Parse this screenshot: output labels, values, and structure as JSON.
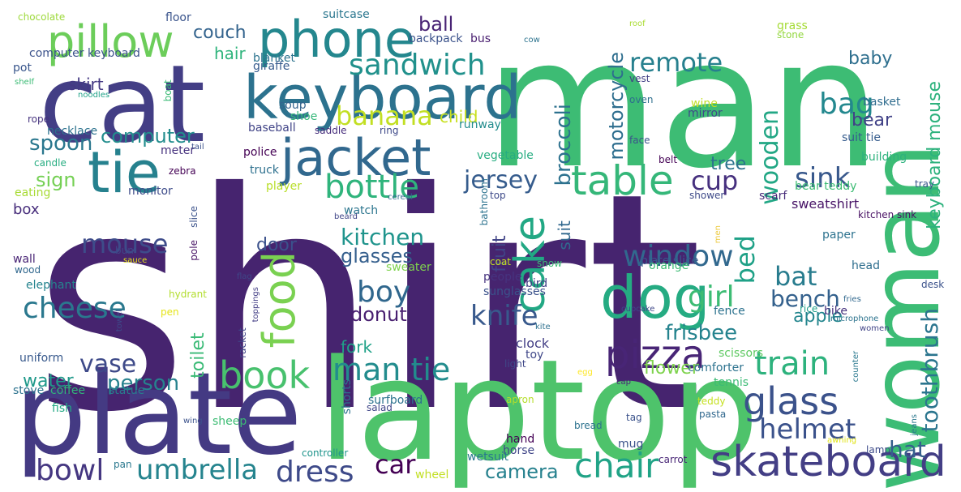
{
  "word_cloud": {
    "palette": "viridis",
    "background": "#ffffff",
    "words": [
      {
        "text": "shirt",
        "color": "#46246f"
      },
      {
        "text": "man",
        "color": "#3dbc74"
      },
      {
        "text": "laptop",
        "color": "#4ec36b"
      },
      {
        "text": "woman",
        "color": "#3cbc75"
      },
      {
        "text": "plate",
        "color": "#443a83"
      },
      {
        "text": "cat",
        "color": "#433e85"
      },
      {
        "text": "keyboard",
        "color": "#2c728e"
      },
      {
        "text": "phone",
        "color": "#24878e"
      },
      {
        "text": "pillow",
        "color": "#6ccd5a"
      },
      {
        "text": "jacket",
        "color": "#31688e"
      },
      {
        "text": "tie",
        "color": "#26818e"
      },
      {
        "text": "dog",
        "color": "#25ab82"
      },
      {
        "text": "food",
        "color": "#7ad151"
      },
      {
        "text": "cake",
        "color": "#22a884"
      },
      {
        "text": "skateboard",
        "color": "#433e85"
      },
      {
        "text": "pizza",
        "color": "#482576"
      },
      {
        "text": "glass",
        "color": "#3b528b"
      },
      {
        "text": "table",
        "color": "#35b779"
      },
      {
        "text": "bottle",
        "color": "#2fb47c"
      },
      {
        "text": "book",
        "color": "#48c16e"
      },
      {
        "text": "sandwich",
        "color": "#21918c"
      },
      {
        "text": "banana",
        "color": "#c2df23"
      },
      {
        "text": "chair",
        "color": "#20a386"
      },
      {
        "text": "train",
        "color": "#2db27d"
      },
      {
        "text": "man tie",
        "color": "#228c8d"
      },
      {
        "text": "cheese",
        "color": "#2a788e"
      },
      {
        "text": "window",
        "color": "#31688e"
      },
      {
        "text": "bowl",
        "color": "#453781"
      },
      {
        "text": "umbrella",
        "color": "#25848e"
      },
      {
        "text": "dress",
        "color": "#3e4a89"
      },
      {
        "text": "helmet",
        "color": "#3b528b"
      },
      {
        "text": "boy",
        "color": "#30678d"
      },
      {
        "text": "knife",
        "color": "#38598c"
      },
      {
        "text": "jersey",
        "color": "#365c8d"
      },
      {
        "text": "sink",
        "color": "#38588c"
      },
      {
        "text": "remote",
        "color": "#27808e"
      },
      {
        "text": "bag",
        "color": "#23888e"
      },
      {
        "text": "wooden",
        "color": "#22a785"
      },
      {
        "text": "kitchen",
        "color": "#1f948c"
      },
      {
        "text": "mouse",
        "color": "#3e4c8a"
      },
      {
        "text": "cup",
        "color": "#46307e"
      },
      {
        "text": "bed",
        "color": "#1fa187"
      },
      {
        "text": "girl",
        "color": "#3dbc74"
      },
      {
        "text": "vase",
        "color": "#3e4a89"
      },
      {
        "text": "car",
        "color": "#440154"
      },
      {
        "text": "hat",
        "color": "#35608d"
      },
      {
        "text": "bat",
        "color": "#287c8e"
      },
      {
        "text": "person",
        "color": "#26828e"
      },
      {
        "text": "toothbrush",
        "color": "#2b758e"
      },
      {
        "text": "water",
        "color": "#1f998a"
      },
      {
        "text": "bench",
        "color": "#34618d"
      },
      {
        "text": "frisbee",
        "color": "#25838e"
      },
      {
        "text": "broccoli",
        "color": "#2c718e"
      },
      {
        "text": "computer",
        "color": "#228d8d"
      },
      {
        "text": "spoon",
        "color": "#2a778e"
      },
      {
        "text": "sign",
        "color": "#75d054"
      },
      {
        "text": "glasses",
        "color": "#355f8d"
      },
      {
        "text": "camera",
        "color": "#26818e"
      },
      {
        "text": "donut",
        "color": "#481f70"
      },
      {
        "text": "door",
        "color": "#3b518b"
      },
      {
        "text": "flower",
        "color": "#7fd34e"
      },
      {
        "text": "couch",
        "color": "#33638d"
      },
      {
        "text": "motorcycle",
        "color": "#2e6e8e"
      },
      {
        "text": "keyboard mouse",
        "color": "#2db27d"
      },
      {
        "text": "baby",
        "color": "#2e6f8e"
      },
      {
        "text": "bear",
        "color": "#414287"
      },
      {
        "text": "tree",
        "color": "#2c728e"
      },
      {
        "text": "fruit",
        "color": "#414487"
      },
      {
        "text": "suit",
        "color": "#31688e"
      },
      {
        "text": "apple",
        "color": "#24868e"
      },
      {
        "text": "fork",
        "color": "#1fa188"
      },
      {
        "text": "toilet",
        "color": "#3aba76"
      },
      {
        "text": "child",
        "color": "#c8e020"
      },
      {
        "text": "ball",
        "color": "#482374"
      },
      {
        "text": "skirt",
        "color": "#443983"
      },
      {
        "text": "hair",
        "color": "#2fb47c"
      },
      {
        "text": "box",
        "color": "#472d7b"
      },
      {
        "text": "clock",
        "color": "#433e85"
      },
      {
        "text": "sweatshirt",
        "color": "#481467"
      },
      {
        "text": "scarf",
        "color": "#472c7a"
      },
      {
        "text": "plate slice",
        "color": "#38588c"
      },
      {
        "text": "coffee",
        "color": "#31b57b"
      },
      {
        "text": "stove",
        "color": "#2c728e"
      },
      {
        "text": "statue",
        "color": "#287d8e"
      },
      {
        "text": "uniform",
        "color": "#38598c"
      },
      {
        "text": "elephant",
        "color": "#25848e"
      },
      {
        "text": "wall",
        "color": "#482475"
      },
      {
        "text": "wood",
        "color": "#31688e"
      },
      {
        "text": "eating",
        "color": "#a8db34"
      },
      {
        "text": "monitor",
        "color": "#3e4c8a"
      },
      {
        "text": "zebra",
        "color": "#440154"
      },
      {
        "text": "meter",
        "color": "#46327e"
      },
      {
        "text": "candle",
        "color": "#27ad81"
      },
      {
        "text": "necklace",
        "color": "#2c728e"
      },
      {
        "text": "rope",
        "color": "#46337f"
      },
      {
        "text": "shelf",
        "color": "#3cbb75"
      },
      {
        "text": "pot",
        "color": "#39568c"
      },
      {
        "text": "computer keyboard",
        "color": "#3b528b"
      },
      {
        "text": "chocolate",
        "color": "#9dd93b"
      },
      {
        "text": "floor",
        "color": "#3a548c"
      },
      {
        "text": "suitcase",
        "color": "#2a768e"
      },
      {
        "text": "blanket",
        "color": "#2c738e"
      },
      {
        "text": "giraffe",
        "color": "#375b8d"
      },
      {
        "text": "backpack",
        "color": "#3b528b"
      },
      {
        "text": "bus",
        "color": "#481d6f"
      },
      {
        "text": "soup",
        "color": "#33638d"
      },
      {
        "text": "shoe",
        "color": "#35b779"
      },
      {
        "text": "baseball",
        "color": "#414487"
      },
      {
        "text": "police",
        "color": "#440154"
      },
      {
        "text": "truck",
        "color": "#2d708e"
      },
      {
        "text": "player",
        "color": "#b8de29"
      },
      {
        "text": "watch",
        "color": "#2b758e"
      },
      {
        "text": "saddle",
        "color": "#472e7c"
      },
      {
        "text": "ring",
        "color": "#3e4989"
      },
      {
        "text": "runway",
        "color": "#228c8d"
      },
      {
        "text": "mirror",
        "color": "#3f4889"
      },
      {
        "text": "wine",
        "color": "#c0df25"
      },
      {
        "text": "belt",
        "color": "#440154"
      },
      {
        "text": "suit tie",
        "color": "#365c8d"
      },
      {
        "text": "building",
        "color": "#2db27d"
      },
      {
        "text": "vegetable",
        "color": "#27ad81"
      },
      {
        "text": "bathroom",
        "color": "#2c728e"
      },
      {
        "text": "shower",
        "color": "#3e4a89"
      },
      {
        "text": "top",
        "color": "#3e4a89"
      },
      {
        "text": "cereal",
        "color": "#31688e"
      },
      {
        "text": "bear teddy",
        "color": "#3dbc74"
      },
      {
        "text": "tray",
        "color": "#39568c"
      },
      {
        "text": "kitchen sink",
        "color": "#471063"
      },
      {
        "text": "paper",
        "color": "#2c728e"
      },
      {
        "text": "head",
        "color": "#2e6e8e"
      },
      {
        "text": "basket",
        "color": "#2f6c8e"
      },
      {
        "text": "vest",
        "color": "#423f85"
      },
      {
        "text": "oven",
        "color": "#2e6f8e"
      },
      {
        "text": "face",
        "color": "#3b528b"
      },
      {
        "text": "roof",
        "color": "#aadc32"
      },
      {
        "text": "grass",
        "color": "#a5db36"
      },
      {
        "text": "stone",
        "color": "#93d741"
      },
      {
        "text": "cow",
        "color": "#2c738e"
      },
      {
        "text": "slice",
        "color": "#3b528b"
      },
      {
        "text": "pole",
        "color": "#471365"
      },
      {
        "text": "bun",
        "color": "#3f4788"
      },
      {
        "text": "sauce",
        "color": "#e7e419"
      },
      {
        "text": "beard",
        "color": "#404688"
      },
      {
        "text": "flag",
        "color": "#3f4788"
      },
      {
        "text": "hydrant",
        "color": "#b2dd2d"
      },
      {
        "text": "pen",
        "color": "#e5e419"
      },
      {
        "text": "towel",
        "color": "#3e4a89"
      },
      {
        "text": "toppings",
        "color": "#433e85"
      },
      {
        "text": "racket",
        "color": "#404688"
      },
      {
        "text": "noodles",
        "color": "#1fa287"
      },
      {
        "text": "boat",
        "color": "#3aba76"
      },
      {
        "text": "tail",
        "color": "#3b528b"
      },
      {
        "text": "sweater",
        "color": "#7fd34e"
      },
      {
        "text": "coat",
        "color": "#c5e021"
      },
      {
        "text": "snow",
        "color": "#3cbb75"
      },
      {
        "text": "people",
        "color": "#46337f"
      },
      {
        "text": "bird",
        "color": "#424086"
      },
      {
        "text": "sunglasses",
        "color": "#3b528b"
      },
      {
        "text": "orange",
        "color": "#3dbc74"
      },
      {
        "text": "fence",
        "color": "#2c728e"
      },
      {
        "text": "rice",
        "color": "#1f9e89"
      },
      {
        "text": "bike",
        "color": "#46327e"
      },
      {
        "text": "cupcake",
        "color": "#3f4889"
      },
      {
        "text": "microphone",
        "color": "#2c738e"
      },
      {
        "text": "men",
        "color": "#ecca3f"
      },
      {
        "text": "fries",
        "color": "#31688e"
      },
      {
        "text": "women",
        "color": "#414487"
      },
      {
        "text": "kite",
        "color": "#2d708e"
      },
      {
        "text": "light",
        "color": "#3f4788"
      },
      {
        "text": "toy",
        "color": "#3f4788"
      },
      {
        "text": "comforter",
        "color": "#2c728e"
      },
      {
        "text": "tennis",
        "color": "#3cbb75"
      },
      {
        "text": "scissors",
        "color": "#5ec962"
      },
      {
        "text": "egg",
        "color": "#fde725"
      },
      {
        "text": "cap",
        "color": "#482576"
      },
      {
        "text": "counter",
        "color": "#2a788e"
      },
      {
        "text": "desk",
        "color": "#3b528b"
      },
      {
        "text": "salad",
        "color": "#404688"
      },
      {
        "text": "shorts",
        "color": "#2c728e"
      },
      {
        "text": "surfboard",
        "color": "#2c728e"
      },
      {
        "text": "apron",
        "color": "#b5de2b"
      },
      {
        "text": "teddy",
        "color": "#c5e021"
      },
      {
        "text": "pasta",
        "color": "#31688e"
      },
      {
        "text": "jeans",
        "color": "#2a788e"
      },
      {
        "text": "awning",
        "color": "#e1e418"
      },
      {
        "text": "fish",
        "color": "#22a884"
      },
      {
        "text": "wing",
        "color": "#3b528b"
      },
      {
        "text": "sheep",
        "color": "#3dbc74"
      },
      {
        "text": "hand",
        "color": "#440154"
      },
      {
        "text": "horse",
        "color": "#404688"
      },
      {
        "text": "bread",
        "color": "#2c728e"
      },
      {
        "text": "tag",
        "color": "#3b528b"
      },
      {
        "text": "mug",
        "color": "#3b528b"
      },
      {
        "text": "carrot",
        "color": "#482576"
      },
      {
        "text": "lamp",
        "color": "#3e4c8a"
      },
      {
        "text": "controller",
        "color": "#1f948c"
      },
      {
        "text": "wetsuit",
        "color": "#2a788e"
      },
      {
        "text": "pan",
        "color": "#2a788e"
      },
      {
        "text": "wheel",
        "color": "#c2df23"
      }
    ]
  }
}
